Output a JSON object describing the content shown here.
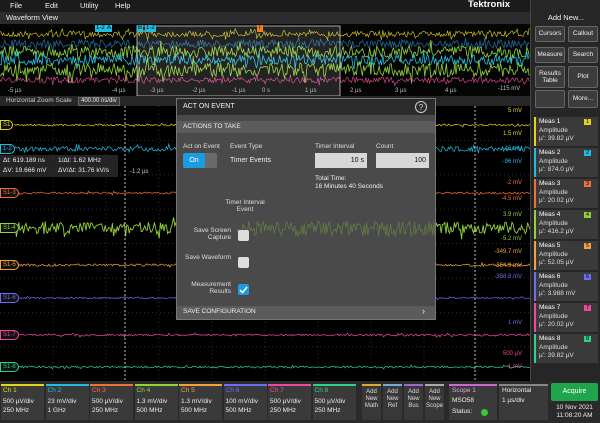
{
  "menu": {
    "items": [
      "File",
      "Edit",
      "Utility",
      "Help"
    ],
    "brand": "Tektronix"
  },
  "waveform_view": {
    "title": "Waveform View",
    "overview_time_labels": [
      "-5 µs",
      "-4 µs",
      "-3 µs",
      "-2 µs",
      "-1 µs",
      "0 s",
      "1 µs",
      "2 µs",
      "3 µs",
      "4 µs"
    ],
    "overview_level": "-115 mV",
    "overview_markers": [
      "1-2",
      "A",
      "B",
      "1-2",
      "T"
    ],
    "zoom_label": "Horizontal Zoom Scale",
    "zoom_value": "400.00 ns/div",
    "cursor_readout": [
      "Δt: 619.189 ns",
      "1/Δt: 1.62 MHz",
      "ΔV: 19.666 mV",
      "ΔV/Δt: 31.76 kV/s"
    ],
    "cursor_time": "-1.2 µs",
    "level_labels": [
      "5 mV",
      "1.5 mV",
      "-46 mV",
      "-96 mV",
      "-2 mV",
      "-4.5 mV",
      "3.9 mV",
      "-5.2 mV",
      "-349.7 mV",
      "-354.9 mV",
      "-358.8 mV",
      "1 mV",
      "500 µV",
      "-1 mV"
    ]
  },
  "channels": [
    {
      "label": "Ch 1",
      "marker": "S1",
      "scale": "500 µV/div",
      "bandwidth": "250 MHz",
      "color": "#e3d31f"
    },
    {
      "label": "Ch 2",
      "marker": "1-2",
      "scale": "23 mV/div",
      "bandwidth": "1 GHz",
      "color": "#21bde0"
    },
    {
      "label": "Ch 3",
      "marker": "S1-3",
      "scale": "500 µV/div",
      "bandwidth": "250 MHz",
      "color": "#f0703a"
    },
    {
      "label": "Ch 4",
      "marker": "S1-4",
      "scale": "1.3 mV/div",
      "bandwidth": "500 MHz",
      "color": "#93d13b"
    },
    {
      "label": "Ch 5",
      "marker": "S1-5",
      "scale": "1.3 mV/div",
      "bandwidth": "500 MHz",
      "color": "#f3a13c"
    },
    {
      "label": "Ch 6",
      "marker": "S1-6",
      "scale": "100 mV/div",
      "bandwidth": "500 MHz",
      "color": "#6f6cf5"
    },
    {
      "label": "Ch 7",
      "marker": "S1-7",
      "scale": "500 µV/div",
      "bandwidth": "250 MHz",
      "color": "#ec4a9f"
    },
    {
      "label": "Ch 8",
      "marker": "S1-8",
      "scale": "500 µV/div",
      "bandwidth": "250 MHz",
      "color": "#2fcf8c"
    }
  ],
  "dialog": {
    "title": "ACT ON EVENT",
    "help": "?",
    "section": "ACTIONS TO TAKE",
    "headers": [
      "Act on Event",
      "Event Type",
      "Timer Interval",
      "Count"
    ],
    "toggle": "On",
    "event_type": "Timer Events",
    "timer_interval": "10 s",
    "count": "100",
    "total_time_label": "Total Time:",
    "total_time": "16 Minutes 40 Seconds",
    "event_caption": "Timer Interval Event",
    "actions": [
      {
        "label": "Save Screen Capture",
        "checked": false
      },
      {
        "label": "Save Waveform",
        "checked": false
      },
      {
        "label": "Measurement Results",
        "checked": true
      }
    ],
    "footer": "SAVE CONFIGURATION"
  },
  "side_panel": {
    "title": "Add New...",
    "buttons": [
      "Cursors",
      "Callout",
      "Measure",
      "Search",
      "Results Table",
      "Plot",
      "More..."
    ],
    "measurements": [
      {
        "name": "Meas 1",
        "tag": "1",
        "type": "Amplitude",
        "value": "µ': 39.82 µV"
      },
      {
        "name": "Meas 2",
        "tag": "2",
        "type": "Amplitude",
        "value": "µ': 874.0 µV"
      },
      {
        "name": "Meas 3",
        "tag": "3",
        "type": "Amplitude",
        "value": "µ': 20.02 µV"
      },
      {
        "name": "Meas 4",
        "tag": "4",
        "type": "Amplitude",
        "value": "µ': 416.2 µV"
      },
      {
        "name": "Meas 5",
        "tag": "5",
        "type": "Amplitude",
        "value": "µ': 52.05 µV"
      },
      {
        "name": "Meas 6",
        "tag": "6",
        "type": "Amplitude",
        "value": "µ': 3.988 mV"
      },
      {
        "name": "Meas 7",
        "tag": "7",
        "type": "Amplitude",
        "value": "µ': 20.02 µV"
      },
      {
        "name": "Meas 8",
        "tag": "8",
        "type": "Amplitude",
        "value": "µ': 39.82 µV"
      }
    ]
  },
  "bottom_bar": {
    "add_new": [
      "Add New Math",
      "Add New Ref",
      "Add New Bus",
      "Add New Scope"
    ],
    "scope": {
      "title": "Scope 1",
      "model": "MSO58",
      "status": "Status:"
    },
    "horizontal": {
      "title": "Horizontal",
      "scale": "1 µs/div"
    },
    "acquire": "Acquire",
    "date": "10 Nov 2021",
    "time": "11:08:20 AM"
  }
}
